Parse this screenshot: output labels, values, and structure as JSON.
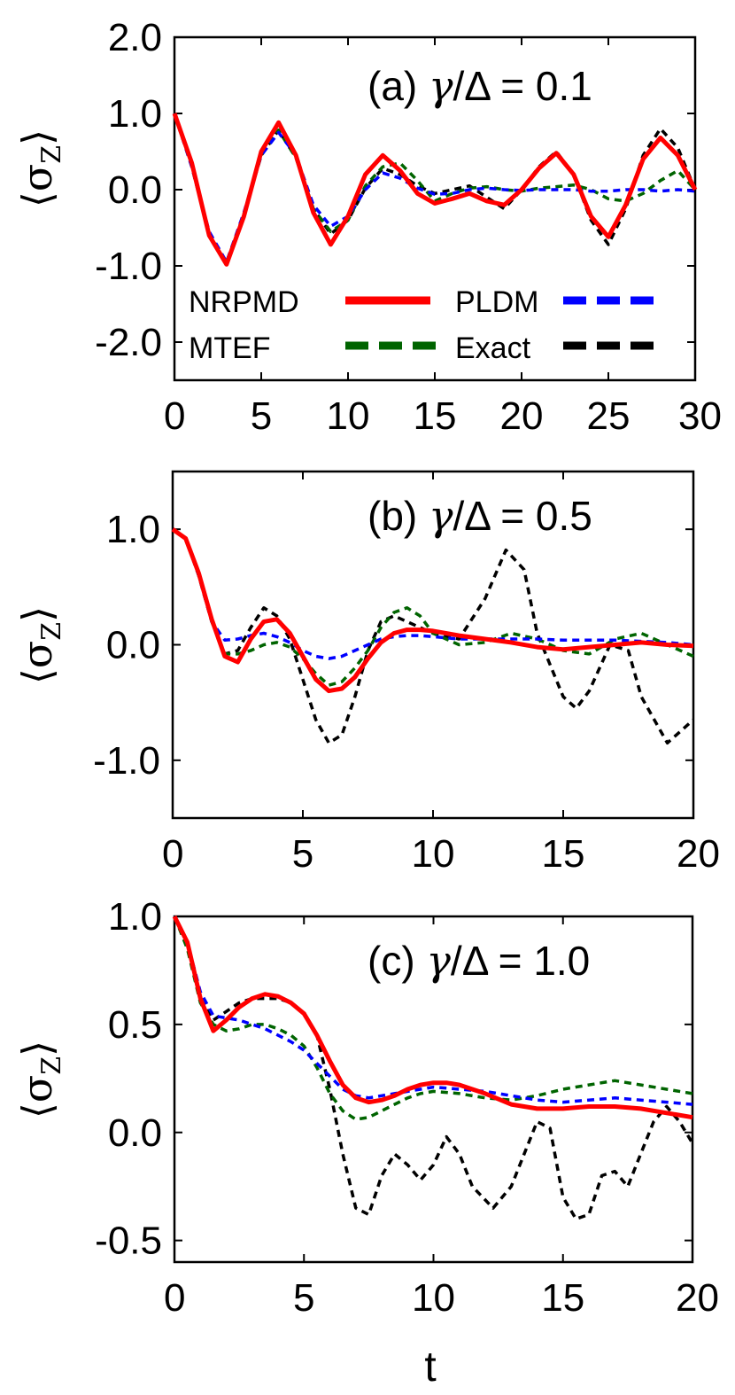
{
  "figure": {
    "xlabel": "t",
    "ylabel_symbol": "σ",
    "ylabel_sub": "Z",
    "ylabel_open": "⟨",
    "ylabel_close": "⟩"
  },
  "legend": [
    {
      "name": "NRPMD",
      "color": "#ff0000"
    },
    {
      "name": "PLDM",
      "color": "#0000ff"
    },
    {
      "name": "MTEF",
      "color": "#006400"
    },
    {
      "name": "Exact",
      "color": "#000000"
    }
  ],
  "chart_data": [
    {
      "type": "line",
      "label_prefix": "(a) ",
      "label_gamma": "γ",
      "label_suffix": "/Δ = 0.1",
      "xlim": [
        0,
        30
      ],
      "ylim": [
        -2.5,
        2.0
      ],
      "xticks": [
        0,
        5,
        10,
        15,
        20,
        25,
        30
      ],
      "xtick_labels": [
        "0",
        "5",
        "10",
        "15",
        "20",
        "25",
        "30"
      ],
      "yticks": [
        2.0,
        1.0,
        0.0,
        -1.0,
        -2.0
      ],
      "ytick_labels": [
        "2.0",
        "1.0",
        "0.0",
        "-1.0",
        "-2.0"
      ],
      "series": [
        {
          "name": "NRPMD",
          "x": [
            0,
            1,
            2,
            3,
            4,
            5,
            6,
            7,
            8,
            9,
            10,
            11,
            12,
            13,
            14,
            15,
            16,
            17,
            18,
            19,
            20,
            21,
            22,
            23,
            24,
            25,
            26,
            27,
            28,
            29,
            30
          ],
          "y": [
            1.0,
            0.35,
            -0.6,
            -0.98,
            -0.35,
            0.5,
            0.88,
            0.45,
            -0.3,
            -0.72,
            -0.35,
            0.2,
            0.45,
            0.25,
            -0.05,
            -0.18,
            -0.12,
            -0.05,
            -0.15,
            -0.2,
            0.0,
            0.28,
            0.48,
            0.2,
            -0.35,
            -0.62,
            -0.2,
            0.4,
            0.68,
            0.45,
            0.0
          ]
        },
        {
          "name": "PLDM",
          "x": [
            0,
            1,
            2,
            3,
            4,
            5,
            6,
            7,
            8,
            9,
            10,
            11,
            12,
            13,
            14,
            15,
            16,
            17,
            18,
            19,
            20,
            21,
            22,
            23,
            24,
            25,
            26,
            27,
            28,
            29,
            30
          ],
          "y": [
            1.0,
            0.3,
            -0.55,
            -0.95,
            -0.3,
            0.45,
            0.75,
            0.45,
            -0.2,
            -0.48,
            -0.35,
            0.0,
            0.22,
            0.15,
            0.02,
            -0.06,
            -0.05,
            0.0,
            0.02,
            0.0,
            -0.01,
            0.0,
            0.0,
            0.0,
            -0.02,
            -0.02,
            0.0,
            0.0,
            -0.02,
            0.0,
            -0.02
          ]
        },
        {
          "name": "MTEF",
          "x": [
            0,
            1,
            2,
            3,
            4,
            5,
            6,
            7,
            8,
            9,
            10,
            11,
            12,
            13,
            14,
            15,
            16,
            17,
            18,
            19,
            20,
            21,
            22,
            23,
            24,
            25,
            26,
            27,
            28,
            29,
            30
          ],
          "y": [
            1.0,
            0.32,
            -0.58,
            -0.95,
            -0.32,
            0.45,
            0.78,
            0.42,
            -0.25,
            -0.55,
            -0.4,
            0.05,
            0.3,
            0.35,
            0.12,
            -0.15,
            -0.05,
            0.02,
            0.04,
            0.0,
            -0.02,
            0.02,
            0.04,
            0.06,
            0.0,
            -0.12,
            -0.15,
            -0.05,
            0.12,
            0.25,
            0.0
          ]
        },
        {
          "name": "Exact",
          "x": [
            0,
            1,
            2,
            3,
            4,
            5,
            6,
            7,
            8,
            9,
            10,
            11,
            12,
            13,
            14,
            15,
            16,
            17,
            18,
            19,
            20,
            21,
            22,
            23,
            24,
            25,
            26,
            27,
            28,
            29,
            30
          ],
          "y": [
            1.0,
            0.3,
            -0.58,
            -0.96,
            -0.32,
            0.45,
            0.78,
            0.42,
            -0.25,
            -0.58,
            -0.4,
            0.02,
            0.28,
            0.2,
            0.05,
            -0.05,
            0.0,
            0.05,
            -0.1,
            -0.25,
            0.0,
            0.3,
            0.5,
            0.2,
            -0.4,
            -0.72,
            -0.25,
            0.45,
            0.8,
            0.55,
            0.0
          ]
        }
      ]
    },
    {
      "type": "line",
      "label_prefix": "(b) ",
      "label_gamma": "γ",
      "label_suffix": "/Δ = 0.5",
      "xlim": [
        0,
        20
      ],
      "ylim": [
        -1.5,
        1.5
      ],
      "xticks": [
        0,
        5,
        10,
        15,
        20
      ],
      "xtick_labels": [
        "0",
        "5",
        "10",
        "15",
        "20"
      ],
      "yticks": [
        1.0,
        0.0,
        -1.0
      ],
      "ytick_labels": [
        "1.0",
        "0.0",
        "-1.0"
      ],
      "series": [
        {
          "name": "NRPMD",
          "x": [
            0,
            0.5,
            1,
            1.5,
            2,
            2.5,
            3,
            3.5,
            4,
            4.5,
            5,
            5.5,
            6,
            6.5,
            7,
            7.5,
            8,
            8.5,
            9,
            9.5,
            10,
            11,
            12,
            13,
            14,
            15,
            16,
            17,
            18,
            19,
            20
          ],
          "y": [
            1.0,
            0.92,
            0.62,
            0.22,
            -0.1,
            -0.15,
            0.05,
            0.2,
            0.22,
            0.1,
            -0.1,
            -0.3,
            -0.4,
            -0.38,
            -0.28,
            -0.12,
            0.02,
            0.1,
            0.13,
            0.13,
            0.12,
            0.08,
            0.05,
            0.02,
            -0.02,
            -0.04,
            -0.02,
            0.0,
            0.02,
            0.0,
            -0.01
          ]
        },
        {
          "name": "PLDM",
          "x": [
            0,
            0.5,
            1,
            1.5,
            2,
            2.5,
            3,
            3.5,
            4,
            4.5,
            5,
            5.5,
            6,
            6.5,
            7,
            7.5,
            8,
            8.5,
            9,
            9.5,
            10,
            11,
            12,
            13,
            14,
            15,
            16,
            17,
            18,
            19,
            20
          ],
          "y": [
            1.0,
            0.92,
            0.6,
            0.2,
            0.04,
            0.05,
            0.08,
            0.1,
            0.07,
            0.02,
            -0.05,
            -0.1,
            -0.12,
            -0.1,
            -0.05,
            0.0,
            0.05,
            0.07,
            0.08,
            0.08,
            0.07,
            0.05,
            0.05,
            0.05,
            0.05,
            0.04,
            0.04,
            0.04,
            0.03,
            0.02,
            0.0
          ]
        },
        {
          "name": "MTEF",
          "x": [
            0,
            0.5,
            1,
            1.5,
            2,
            2.5,
            3,
            3.5,
            4,
            4.5,
            5,
            5.5,
            6,
            6.5,
            7,
            7.5,
            8,
            8.5,
            9,
            9.5,
            10,
            11,
            12,
            13,
            14,
            15,
            16,
            17,
            18,
            19,
            20
          ],
          "y": [
            1.0,
            0.92,
            0.6,
            0.2,
            -0.08,
            -0.08,
            -0.05,
            0.0,
            0.02,
            -0.02,
            -0.12,
            -0.25,
            -0.35,
            -0.32,
            -0.2,
            -0.05,
            0.15,
            0.28,
            0.32,
            0.25,
            0.1,
            0.0,
            0.02,
            0.1,
            0.05,
            -0.05,
            -0.08,
            0.05,
            0.1,
            0.0,
            -0.1
          ]
        },
        {
          "name": "Exact",
          "x": [
            0,
            0.5,
            1,
            1.5,
            2,
            2.5,
            3,
            3.5,
            4,
            4.5,
            5,
            5.5,
            6,
            6.5,
            7,
            7.5,
            8,
            8.5,
            9,
            9.5,
            10,
            11,
            12,
            12.8,
            13.5,
            14,
            15,
            15.5,
            16,
            16.8,
            17.5,
            18,
            19,
            20
          ],
          "y": [
            1.0,
            0.92,
            0.6,
            0.2,
            -0.08,
            -0.05,
            0.15,
            0.32,
            0.25,
            0.05,
            -0.3,
            -0.65,
            -0.85,
            -0.78,
            -0.45,
            -0.05,
            0.2,
            0.25,
            0.2,
            0.15,
            0.1,
            0.05,
            0.4,
            0.82,
            0.65,
            0.1,
            -0.45,
            -0.55,
            -0.4,
            0.0,
            -0.05,
            -0.45,
            -0.85,
            -0.65
          ]
        }
      ]
    },
    {
      "type": "line",
      "label_prefix": "(c) ",
      "label_gamma": "γ",
      "label_suffix": "/Δ = 1.0",
      "xlim": [
        0,
        20
      ],
      "ylim": [
        -0.6,
        1.0
      ],
      "xticks": [
        0,
        5,
        10,
        15,
        20
      ],
      "xtick_labels": [
        "0",
        "5",
        "10",
        "15",
        "20"
      ],
      "yticks": [
        1.0,
        0.5,
        0.0,
        -0.5
      ],
      "ytick_labels": [
        "1.0",
        "0.5",
        "0.0",
        "-0.5"
      ],
      "series": [
        {
          "name": "NRPMD",
          "x": [
            0,
            0.5,
            1,
            1.5,
            2,
            2.5,
            3,
            3.5,
            4,
            4.5,
            5,
            5.5,
            6,
            6.5,
            7,
            7.5,
            8,
            8.5,
            9,
            9.5,
            10,
            10.5,
            11,
            12,
            13,
            14,
            15,
            16,
            17,
            18,
            19,
            20
          ],
          "y": [
            1.0,
            0.88,
            0.62,
            0.47,
            0.52,
            0.58,
            0.62,
            0.64,
            0.63,
            0.6,
            0.55,
            0.45,
            0.33,
            0.22,
            0.16,
            0.14,
            0.15,
            0.17,
            0.2,
            0.22,
            0.23,
            0.23,
            0.22,
            0.18,
            0.13,
            0.11,
            0.11,
            0.12,
            0.12,
            0.11,
            0.09,
            0.07
          ]
        },
        {
          "name": "PLDM",
          "x": [
            0,
            0.5,
            1,
            1.5,
            2,
            2.5,
            3,
            3.5,
            4,
            4.5,
            5,
            5.5,
            6,
            6.5,
            7,
            7.5,
            8,
            8.5,
            9,
            9.5,
            10,
            11,
            12,
            13,
            14,
            15,
            16,
            17,
            18,
            19,
            20
          ],
          "y": [
            1.0,
            0.88,
            0.65,
            0.54,
            0.53,
            0.52,
            0.5,
            0.48,
            0.45,
            0.42,
            0.38,
            0.32,
            0.26,
            0.2,
            0.17,
            0.16,
            0.17,
            0.18,
            0.19,
            0.2,
            0.21,
            0.2,
            0.19,
            0.17,
            0.15,
            0.14,
            0.15,
            0.16,
            0.15,
            0.14,
            0.13
          ]
        },
        {
          "name": "MTEF",
          "x": [
            0,
            0.5,
            1,
            1.5,
            2,
            2.5,
            3,
            3.5,
            4,
            4.5,
            5,
            5.5,
            6,
            6.5,
            7,
            7.5,
            8,
            8.5,
            9,
            9.5,
            10,
            11,
            12,
            13,
            14,
            15,
            16,
            17,
            18,
            19,
            20
          ],
          "y": [
            1.0,
            0.85,
            0.6,
            0.5,
            0.47,
            0.48,
            0.5,
            0.5,
            0.48,
            0.45,
            0.4,
            0.3,
            0.18,
            0.1,
            0.06,
            0.07,
            0.1,
            0.13,
            0.16,
            0.18,
            0.19,
            0.18,
            0.16,
            0.15,
            0.17,
            0.2,
            0.22,
            0.24,
            0.22,
            0.2,
            0.18
          ]
        },
        {
          "name": "Exact",
          "x": [
            0,
            0.5,
            1,
            1.5,
            2,
            2.5,
            3,
            3.5,
            4,
            4.5,
            5,
            5.5,
            6,
            6.5,
            7,
            7.5,
            8,
            8.5,
            9,
            9.5,
            10,
            10.5,
            11,
            11.5,
            12.3,
            13,
            14,
            14.5,
            15,
            15.5,
            16,
            16.5,
            17,
            17.5,
            18,
            18.5,
            19,
            19.5,
            20
          ],
          "y": [
            1.0,
            0.86,
            0.62,
            0.52,
            0.56,
            0.6,
            0.62,
            0.62,
            0.62,
            0.6,
            0.55,
            0.45,
            0.2,
            -0.1,
            -0.35,
            -0.38,
            -0.2,
            -0.1,
            -0.15,
            -0.22,
            -0.15,
            -0.02,
            -0.1,
            -0.25,
            -0.35,
            -0.25,
            0.05,
            0.02,
            -0.3,
            -0.4,
            -0.38,
            -0.2,
            -0.18,
            -0.25,
            -0.1,
            0.05,
            0.12,
            0.05,
            -0.05
          ]
        }
      ]
    }
  ]
}
